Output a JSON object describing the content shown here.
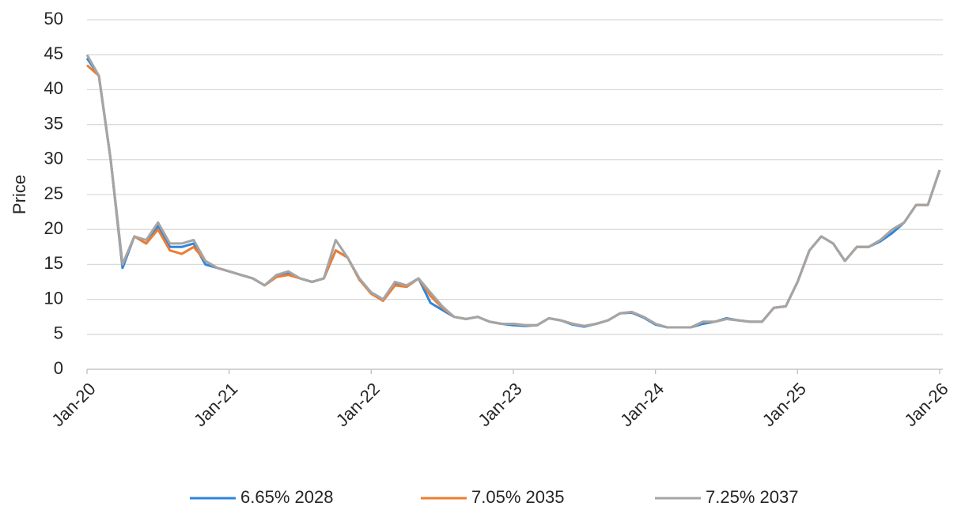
{
  "chart_data": {
    "type": "line",
    "y_label": "Price",
    "x": [
      "2020-01",
      "2020-02",
      "2020-03",
      "2020-04",
      "2020-05",
      "2020-06",
      "2020-07",
      "2020-08",
      "2020-09",
      "2020-10",
      "2020-11",
      "2020-12",
      "2021-01",
      "2021-02",
      "2021-03",
      "2021-04",
      "2021-05",
      "2021-06",
      "2021-07",
      "2021-08",
      "2021-09",
      "2021-10",
      "2021-11",
      "2021-12",
      "2022-01",
      "2022-02",
      "2022-03",
      "2022-04",
      "2022-05",
      "2022-06",
      "2022-07",
      "2022-08",
      "2022-09",
      "2022-10",
      "2022-11",
      "2022-12",
      "2023-01",
      "2023-02",
      "2023-03",
      "2023-04",
      "2023-05",
      "2023-06",
      "2023-07",
      "2023-08",
      "2023-09",
      "2023-10",
      "2023-11",
      "2023-12",
      "2024-01",
      "2024-02",
      "2024-03",
      "2024-04",
      "2024-05",
      "2024-06",
      "2024-07",
      "2024-08",
      "2024-09",
      "2024-10",
      "2024-11",
      "2024-12",
      "2025-01",
      "2025-02",
      "2025-03",
      "2025-04",
      "2025-05",
      "2025-06",
      "2025-07",
      "2025-08",
      "2025-09",
      "2025-10",
      "2025-11",
      "2025-12",
      "2026-01"
    ],
    "xlim": [
      "2020-01",
      "2026-01"
    ],
    "xticks": [
      {
        "value": "2020-01",
        "label": "Jan-20"
      },
      {
        "value": "2021-01",
        "label": "Jan-21"
      },
      {
        "value": "2022-01",
        "label": "Jan-22"
      },
      {
        "value": "2023-01",
        "label": "Jan-23"
      },
      {
        "value": "2024-01",
        "label": "Jan-24"
      },
      {
        "value": "2025-01",
        "label": "Jan-25"
      },
      {
        "value": "2026-01",
        "label": "Jan-26"
      }
    ],
    "ylim": [
      0,
      50
    ],
    "yticks": [
      0,
      5,
      10,
      15,
      20,
      25,
      30,
      35,
      40,
      45,
      50
    ],
    "grid": true,
    "legend": "bottom",
    "series": [
      {
        "name": "6.65% 2028",
        "color": "#2e86de",
        "values": [
          44.5,
          42,
          30,
          14.5,
          19,
          18,
          20.5,
          17.5,
          17.5,
          18,
          15,
          14.5,
          14,
          13.5,
          13,
          12,
          13.5,
          13.8,
          13,
          12.5,
          13,
          17,
          16,
          12.8,
          11,
          10,
          12.3,
          12,
          13,
          9.5,
          8.5,
          7.5,
          7.2,
          7.5,
          6.8,
          6.5,
          6.3,
          6.2,
          6.3,
          7.3,
          7,
          6.4,
          6.1,
          6.5,
          7,
          8,
          8.1,
          7.4,
          6.4,
          6,
          6,
          6,
          6.5,
          6.8,
          7.3,
          7,
          6.8,
          6.8,
          8.8,
          9,
          12.5,
          17,
          19,
          18,
          15.5,
          17.5,
          17.5,
          18.3,
          19.5,
          21,
          23.5,
          23.5,
          28.5
        ]
      },
      {
        "name": "7.05% 2035",
        "color": "#ed7d31",
        "values": [
          43.5,
          42,
          30,
          15,
          19,
          18,
          20,
          17,
          16.5,
          17.5,
          15.5,
          14.5,
          14,
          13.5,
          13,
          12,
          13.2,
          13.5,
          13,
          12.5,
          13,
          17,
          16,
          12.8,
          10.8,
          9.8,
          12,
          11.8,
          13,
          10.5,
          8.8,
          7.5,
          7.2,
          7.5,
          6.8,
          6.5,
          6.5,
          6.3,
          6.3,
          7.3,
          7,
          6.5,
          6.2,
          6.5,
          7,
          8,
          8.2,
          7.5,
          6.5,
          6,
          6,
          6,
          6.8,
          6.8,
          7.2,
          7,
          6.8,
          6.8,
          8.8,
          9,
          12.5,
          17,
          19,
          18,
          15.5,
          17.5,
          17.5,
          18.5,
          20,
          21,
          23.5,
          23.5,
          28.5
        ]
      },
      {
        "name": "7.25% 2037",
        "color": "#a5a5a5",
        "values": [
          45,
          42,
          30,
          15,
          19,
          18.5,
          21,
          18,
          18,
          18.5,
          15.5,
          14.5,
          14,
          13.5,
          13,
          12,
          13.5,
          14,
          13,
          12.5,
          13,
          18.5,
          16,
          13,
          11,
          10,
          12.5,
          12,
          13,
          11,
          9,
          7.5,
          7.2,
          7.5,
          6.8,
          6.5,
          6.5,
          6.3,
          6.3,
          7.3,
          7,
          6.5,
          6.2,
          6.5,
          7,
          8,
          8.2,
          7.5,
          6.5,
          6,
          6,
          6,
          6.8,
          6.8,
          7.2,
          7,
          6.8,
          6.8,
          8.8,
          9,
          12.5,
          17,
          19,
          18,
          15.5,
          17.5,
          17.5,
          18.5,
          20,
          21,
          23.5,
          23.5,
          28.5
        ]
      }
    ]
  }
}
